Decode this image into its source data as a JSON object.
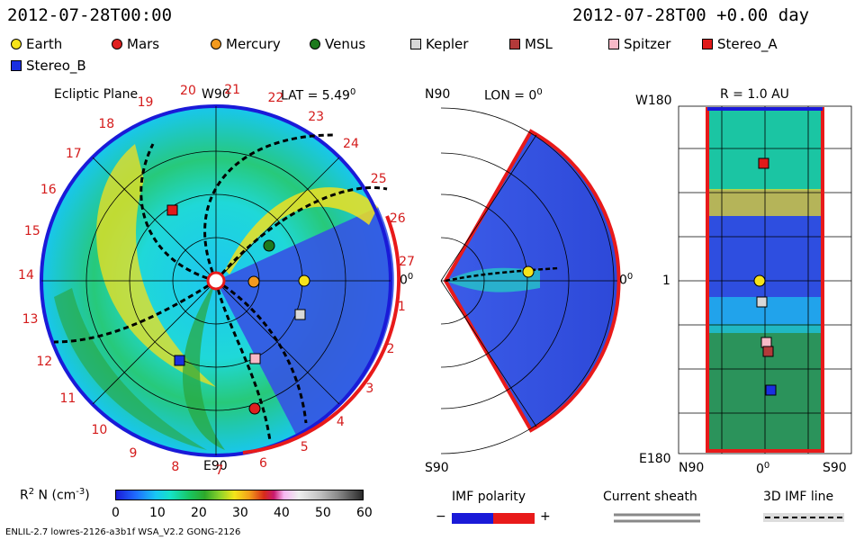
{
  "header": {
    "left_timestamp": "2012-07-28T00:00",
    "right_timestamp": "2012-07-28T00 +0.00 day"
  },
  "legend": [
    {
      "label": "Earth",
      "shape": "circle",
      "color": "#f6e31a"
    },
    {
      "label": "Mars",
      "shape": "circle",
      "color": "#e02020"
    },
    {
      "label": "Mercury",
      "shape": "circle",
      "color": "#f39a1e"
    },
    {
      "label": "Venus",
      "shape": "circle",
      "color": "#1d7a1d"
    },
    {
      "label": "Kepler",
      "shape": "square",
      "color": "#d8d8d8"
    },
    {
      "label": "MSL",
      "shape": "square",
      "color": "#b33a3a"
    },
    {
      "label": "Spitzer",
      "shape": "square",
      "color": "#f7b9c7"
    },
    {
      "label": "Stereo_A",
      "shape": "square",
      "color": "#e01a1a"
    },
    {
      "label": "Stereo_B",
      "shape": "square",
      "color": "#1a2fe0"
    }
  ],
  "ecliptic": {
    "title": "Ecliptic Plane",
    "top_label": "W90",
    "bottom_label": "E90",
    "lat_label": "LAT = 5.49",
    "lat_sup": "0",
    "right_label": "0",
    "right_sup": "0",
    "sector_labels": [
      "19",
      "20",
      "21",
      "22",
      "23",
      "24",
      "25",
      "26",
      "27",
      "1",
      "2",
      "3",
      "4",
      "5",
      "6",
      "7",
      "8",
      "9",
      "10",
      "11",
      "12",
      "13",
      "14",
      "15",
      "16",
      "17",
      "18"
    ]
  },
  "meridional": {
    "top_left": "N90",
    "lon_label": "LON = 0",
    "lon_sup": "0",
    "right_label": "0",
    "right_sup": "0",
    "bottom_left": "S90"
  },
  "radial": {
    "r_label": "R = 1.0 AU",
    "top_left": "W180",
    "mid_left": "1",
    "bottom_left": "E180",
    "bottom_n": "N90",
    "bottom_zero": "0",
    "bottom_zero_sup": "0",
    "bottom_s": "S90"
  },
  "colorbar": {
    "label": "R",
    "label_sup": "2",
    "label_rest": " N (cm",
    "label_exp": "-3",
    "label_close": ")",
    "ticks": [
      "0",
      "10",
      "20",
      "30",
      "40",
      "50",
      "60"
    ]
  },
  "imf": {
    "title": "IMF polarity",
    "minus": "−",
    "plus": "+",
    "colors": [
      "#1a1ad8",
      "#e81a1a"
    ]
  },
  "current_sheath": {
    "title": "Current sheath"
  },
  "imf_line": {
    "title": "3D IMF line"
  },
  "footer": {
    "model": "ENLIL-2.7 lowres-2126-a3b1f WSA_V2.2 GONG-2126"
  }
}
